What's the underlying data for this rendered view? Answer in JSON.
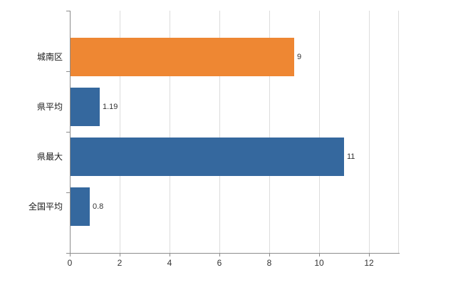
{
  "chart_data": {
    "type": "bar",
    "orientation": "horizontal",
    "title": "",
    "categories": [
      "城南区",
      "県平均",
      "県最大",
      "全国平均"
    ],
    "values": [
      9,
      1.19,
      11,
      0.8
    ],
    "value_labels": [
      "9",
      "1.19",
      "11",
      "0.8"
    ],
    "bar_colors": [
      "#EE8733",
      "#35689E",
      "#35689E",
      "#35689E"
    ],
    "xlim": [
      0,
      13.2
    ],
    "xticks": [
      0,
      2,
      4,
      6,
      8,
      10,
      12
    ],
    "grid": true,
    "legend": "none",
    "colors": {
      "orange": "#EE8733",
      "blue": "#35689E",
      "gridline": "#dcdcdc",
      "axis": "#8c8c8c",
      "text": "#1a1a1a"
    }
  }
}
